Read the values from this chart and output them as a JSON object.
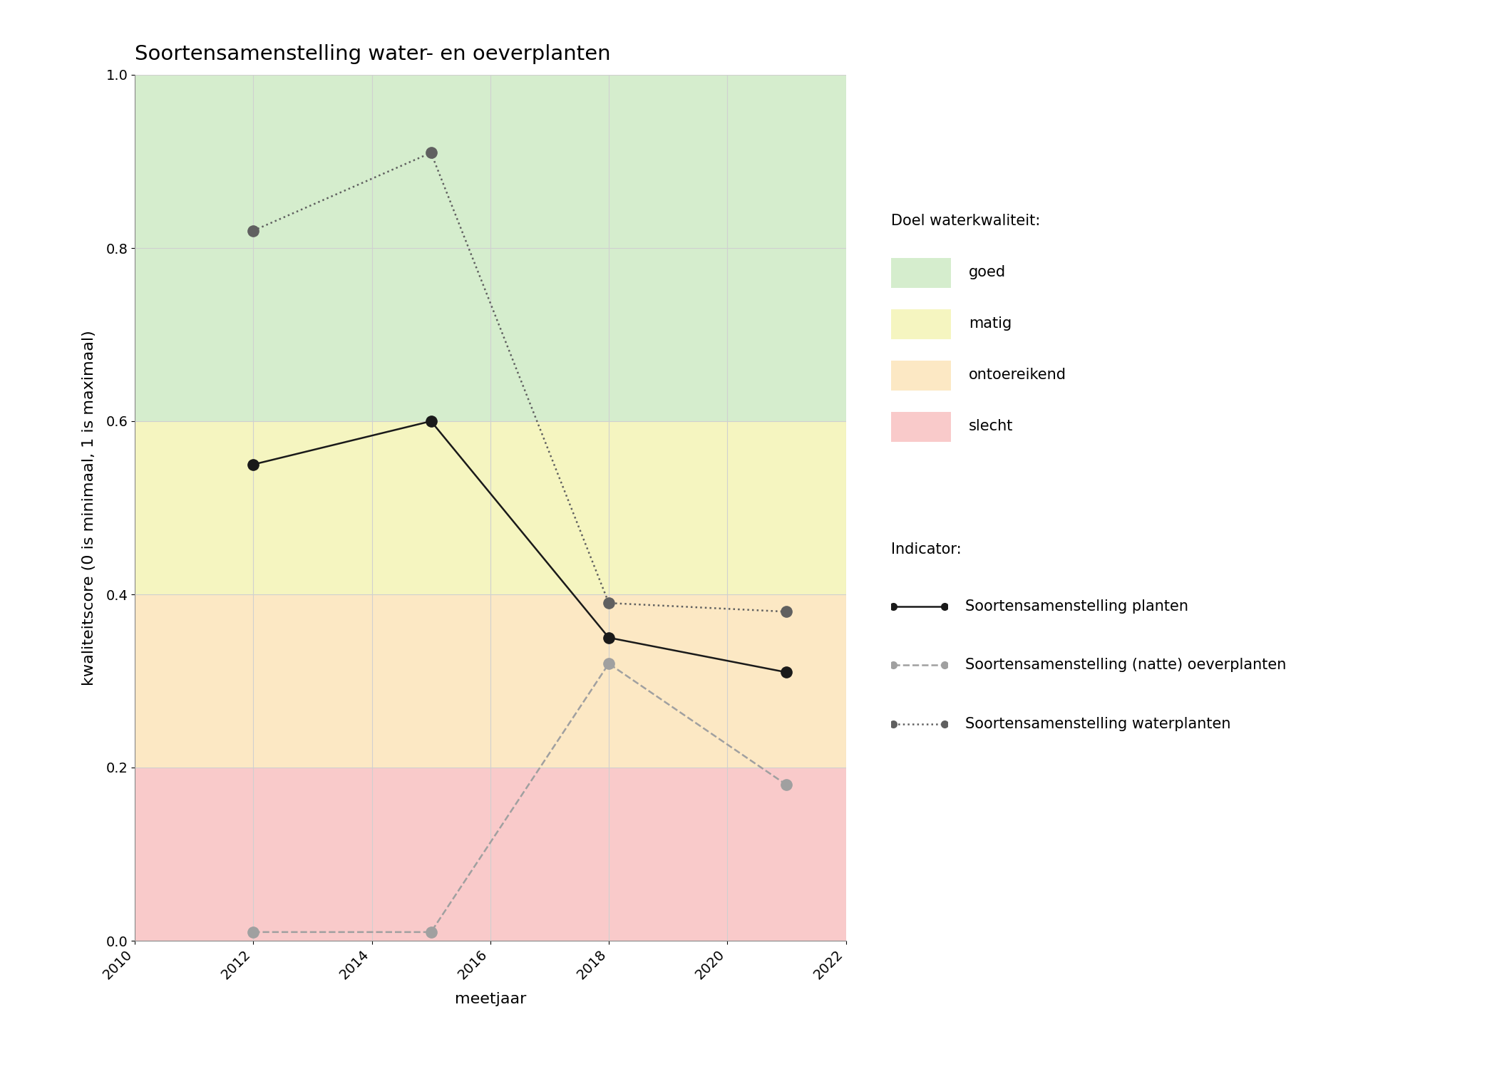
{
  "title": "Soortensamenstelling water- en oeverplanten",
  "xlabel": "meetjaar",
  "ylabel": "kwaliteitscore (0 is minimaal, 1 is maximaal)",
  "xlim": [
    2010,
    2022
  ],
  "ylim": [
    0.0,
    1.0
  ],
  "xticks": [
    2010,
    2012,
    2014,
    2016,
    2018,
    2020,
    2022
  ],
  "yticks": [
    0.0,
    0.2,
    0.4,
    0.6,
    0.8,
    1.0
  ],
  "bg_colors": [
    {
      "name": "goed",
      "color": "#d5edcd",
      "ymin": 0.6,
      "ymax": 1.0
    },
    {
      "name": "matig",
      "color": "#f5f5c0",
      "ymin": 0.4,
      "ymax": 0.6
    },
    {
      "name": "ontoereikend",
      "color": "#fce8c4",
      "ymin": 0.2,
      "ymax": 0.4
    },
    {
      "name": "slecht",
      "color": "#f9caca",
      "ymin": 0.0,
      "ymax": 0.2
    }
  ],
  "series": {
    "planten": {
      "x": [
        2012,
        2015,
        2018,
        2021
      ],
      "y": [
        0.55,
        0.6,
        0.35,
        0.31
      ],
      "color": "#1a1a1a",
      "linestyle": "solid",
      "marker": "o",
      "markersize": 11,
      "linewidth": 1.8,
      "label": "Soortensamenstelling planten"
    },
    "oeverplanten": {
      "x": [
        2012,
        2015,
        2018,
        2021
      ],
      "y": [
        0.01,
        0.01,
        0.32,
        0.18
      ],
      "color": "#a0a0a0",
      "linestyle": "dashed",
      "marker": "o",
      "markersize": 11,
      "linewidth": 1.8,
      "label": "Soortensamenstelling (natte) oeverplanten"
    },
    "waterplanten": {
      "x": [
        2012,
        2015,
        2018,
        2021
      ],
      "y": [
        0.82,
        0.91,
        0.39,
        0.38
      ],
      "color": "#606060",
      "linestyle": "dotted",
      "marker": "o",
      "markersize": 11,
      "linewidth": 1.8,
      "label": "Soortensamenstelling waterplanten"
    }
  },
  "legend_title_kwaliteit": "Doel waterkwaliteit:",
  "legend_title_indicator": "Indicator:",
  "legend_colors": {
    "goed": "#d5edcd",
    "matig": "#f5f5c0",
    "ontoereikend": "#fce8c4",
    "slecht": "#f9caca"
  },
  "background_color": "#ffffff",
  "grid_color": "#d0d0d0",
  "title_fontsize": 21,
  "label_fontsize": 16,
  "tick_fontsize": 14,
  "legend_fontsize": 15
}
